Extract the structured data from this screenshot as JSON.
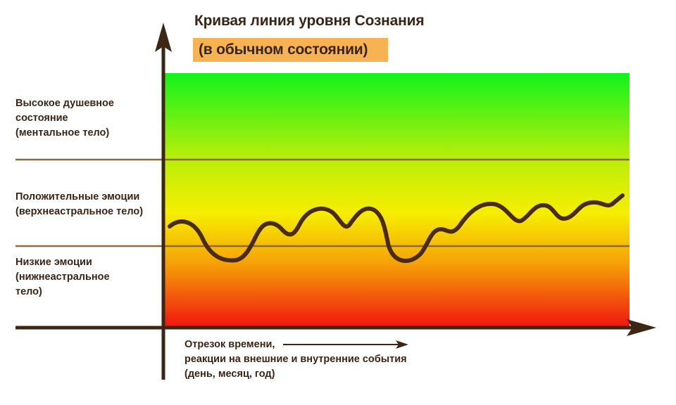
{
  "title": "Кривая линия уровня Сознания",
  "subtitle": "(в обычном состоянии)",
  "zones": [
    {
      "label": "Высокое душевное\nсостояние\n(ментальное тело)"
    },
    {
      "label": "Положительные эмоции\n(верхнеастральное тело)"
    },
    {
      "label": "Низкие эмоции\n(нижнеастральное\nтело)"
    }
  ],
  "x_caption": {
    "line1": "Отрезок времени,",
    "line2": "реакции на внешние и внутренние события",
    "line3": "(день, месяц, год)"
  },
  "colors": {
    "axis": "#3e2615",
    "curve": "#4a2b14",
    "divider": "#8a6a40",
    "gradient_top": "#11f31c",
    "gradient_mid": "#f6ee00",
    "gradient_bottom": "#f01410",
    "subtitle_bg": "#f7b351"
  }
}
